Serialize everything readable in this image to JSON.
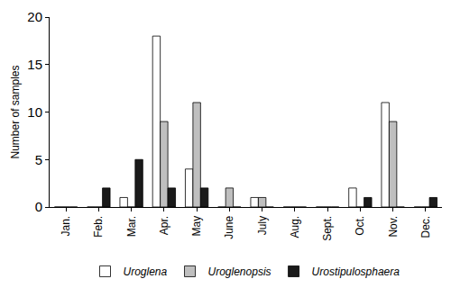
{
  "chart_data": {
    "type": "bar",
    "y_label": "Number of samples",
    "categories": [
      "Jan.",
      "Feb.",
      "Mar.",
      "Apr.",
      "May",
      "June",
      "July",
      "Aug.",
      "Sept.",
      "Oct.",
      "Nov.",
      "Dec."
    ],
    "series": [
      {
        "name": "Uroglena",
        "color": "#ffffff",
        "values": [
          0,
          0,
          1,
          18,
          4,
          0,
          1,
          0,
          0,
          2,
          11,
          0
        ]
      },
      {
        "name": "Uroglenopsis",
        "color": "#bfbfbf",
        "values": [
          0,
          0,
          0,
          9,
          11,
          2,
          1,
          0,
          0,
          0,
          9,
          0
        ]
      },
      {
        "name": "Urostipulosphaera",
        "color": "#1a1a1a",
        "values": [
          0,
          2,
          5,
          2,
          2,
          0,
          0,
          0,
          0,
          1,
          0,
          1
        ]
      }
    ],
    "ylim": [
      0,
      20
    ],
    "yticks": [
      0,
      5,
      10,
      15,
      20
    ],
    "grid": false,
    "legend": "bottom"
  }
}
